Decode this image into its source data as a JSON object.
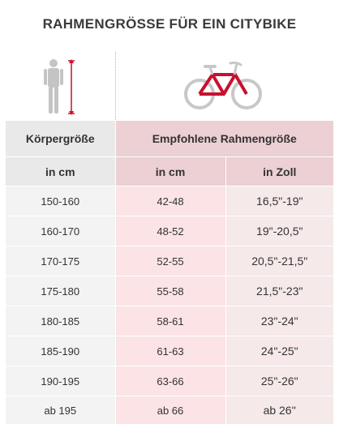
{
  "title": "RAHMENGRÖSSE FÜR EIN CITYBIKE",
  "icons": {
    "person": "person-height-icon",
    "bike": "city-bike-icon"
  },
  "colors": {
    "accent": "#c8102e",
    "header_pink": "#ecd0d4",
    "cell_pink": "#fbe3e6",
    "header_gray": "#e9e9e9"
  },
  "table": {
    "header": {
      "col1": "Körpergröße",
      "col2": "Empfohlene Rahmengröße"
    },
    "subheader": [
      "in cm",
      "in cm",
      "in Zoll"
    ],
    "rows": [
      [
        "150-160",
        "42-48",
        "16,5\"-19\""
      ],
      [
        "160-170",
        "48-52",
        "19\"-20,5\""
      ],
      [
        "170-175",
        "52-55",
        "20,5\"-21,5\""
      ],
      [
        "175-180",
        "55-58",
        "21,5\"-23\""
      ],
      [
        "180-185",
        "58-61",
        "23\"-24\""
      ],
      [
        "185-190",
        "61-63",
        "24\"-25\""
      ],
      [
        "190-195",
        "63-66",
        "25\"-26\""
      ],
      [
        "ab 195",
        "ab 66",
        "ab 26''"
      ]
    ]
  }
}
